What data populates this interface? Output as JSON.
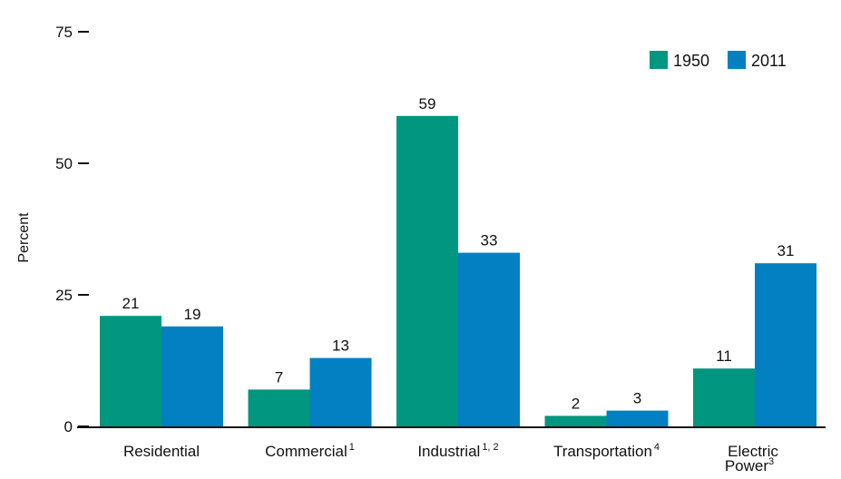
{
  "chart_data": {
    "type": "bar",
    "categories": [
      {
        "name": "Residential",
        "sup": ""
      },
      {
        "name": "Commercial",
        "sup": "1"
      },
      {
        "name": "Industrial",
        "sup": "1, 2"
      },
      {
        "name": "Transportation",
        "sup": "4"
      },
      {
        "name": "Electric Power",
        "line1": "Electric",
        "line2": "Power",
        "sup": "3"
      }
    ],
    "series": [
      {
        "name": "1950",
        "color": "#00967f",
        "values": [
          21,
          7,
          59,
          2,
          11
        ]
      },
      {
        "name": "2011",
        "color": "#0280c2",
        "values": [
          19,
          13,
          33,
          3,
          31
        ]
      }
    ],
    "title": "",
    "xlabel": "",
    "ylabel": "Percent",
    "ylim": [
      0,
      75
    ],
    "yticks": [
      0,
      25,
      50,
      75
    ],
    "grid": false,
    "legend_position": "top-right"
  }
}
